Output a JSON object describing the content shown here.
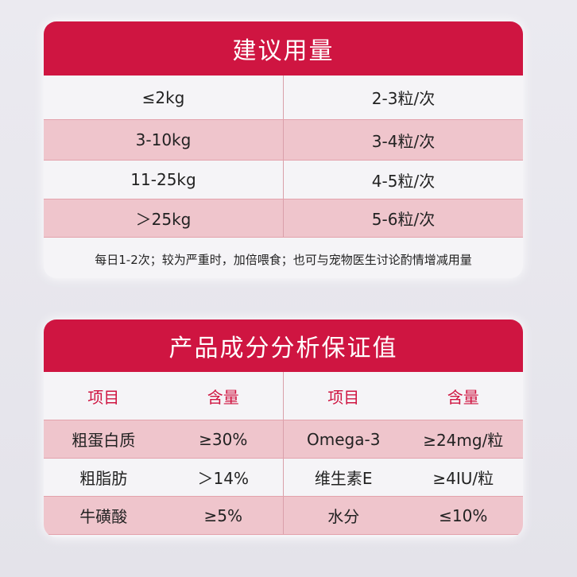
{
  "dosage": {
    "title": "建议用量",
    "rows": [
      [
        "≤2kg",
        "2-3粒/次"
      ],
      [
        "3-10kg",
        "3-4粒/次"
      ],
      [
        "11-25kg",
        "4-5粒/次"
      ],
      [
        "＞25kg",
        "5-6粒/次"
      ]
    ],
    "note": "每日1-2次；较为严重时，加倍喂食；也可与宠物医生讨论酌情增减用量"
  },
  "analysis": {
    "title": "产品成分分析保证值",
    "header": [
      "项目",
      "含量",
      "项目",
      "含量"
    ],
    "rows": [
      [
        "粗蛋白质",
        "≥30%",
        "Omega-3",
        "≥24mg/粒"
      ],
      [
        "粗脂肪",
        "＞14%",
        "维生素E",
        "≥4IU/粒"
      ],
      [
        "牛磺酸",
        "≥5%",
        "水分",
        "≤10%"
      ]
    ]
  }
}
